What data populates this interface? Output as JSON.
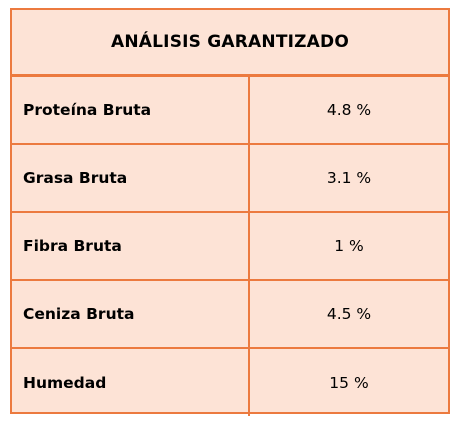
{
  "table": {
    "title": "ANÁLISIS GARANTIZADO",
    "rows": [
      {
        "label": "Proteína Bruta",
        "value": "4.8 %"
      },
      {
        "label": "Grasa Bruta",
        "value": "3.1 %"
      },
      {
        "label": "Fibra Bruta",
        "value": "1 %"
      },
      {
        "label": "Ceniza Bruta",
        "value": "4.5 %"
      },
      {
        "label": "Humedad",
        "value": "15 %"
      }
    ]
  },
  "colors": {
    "border": "#ec7a3f",
    "background": "#fde3d6"
  }
}
